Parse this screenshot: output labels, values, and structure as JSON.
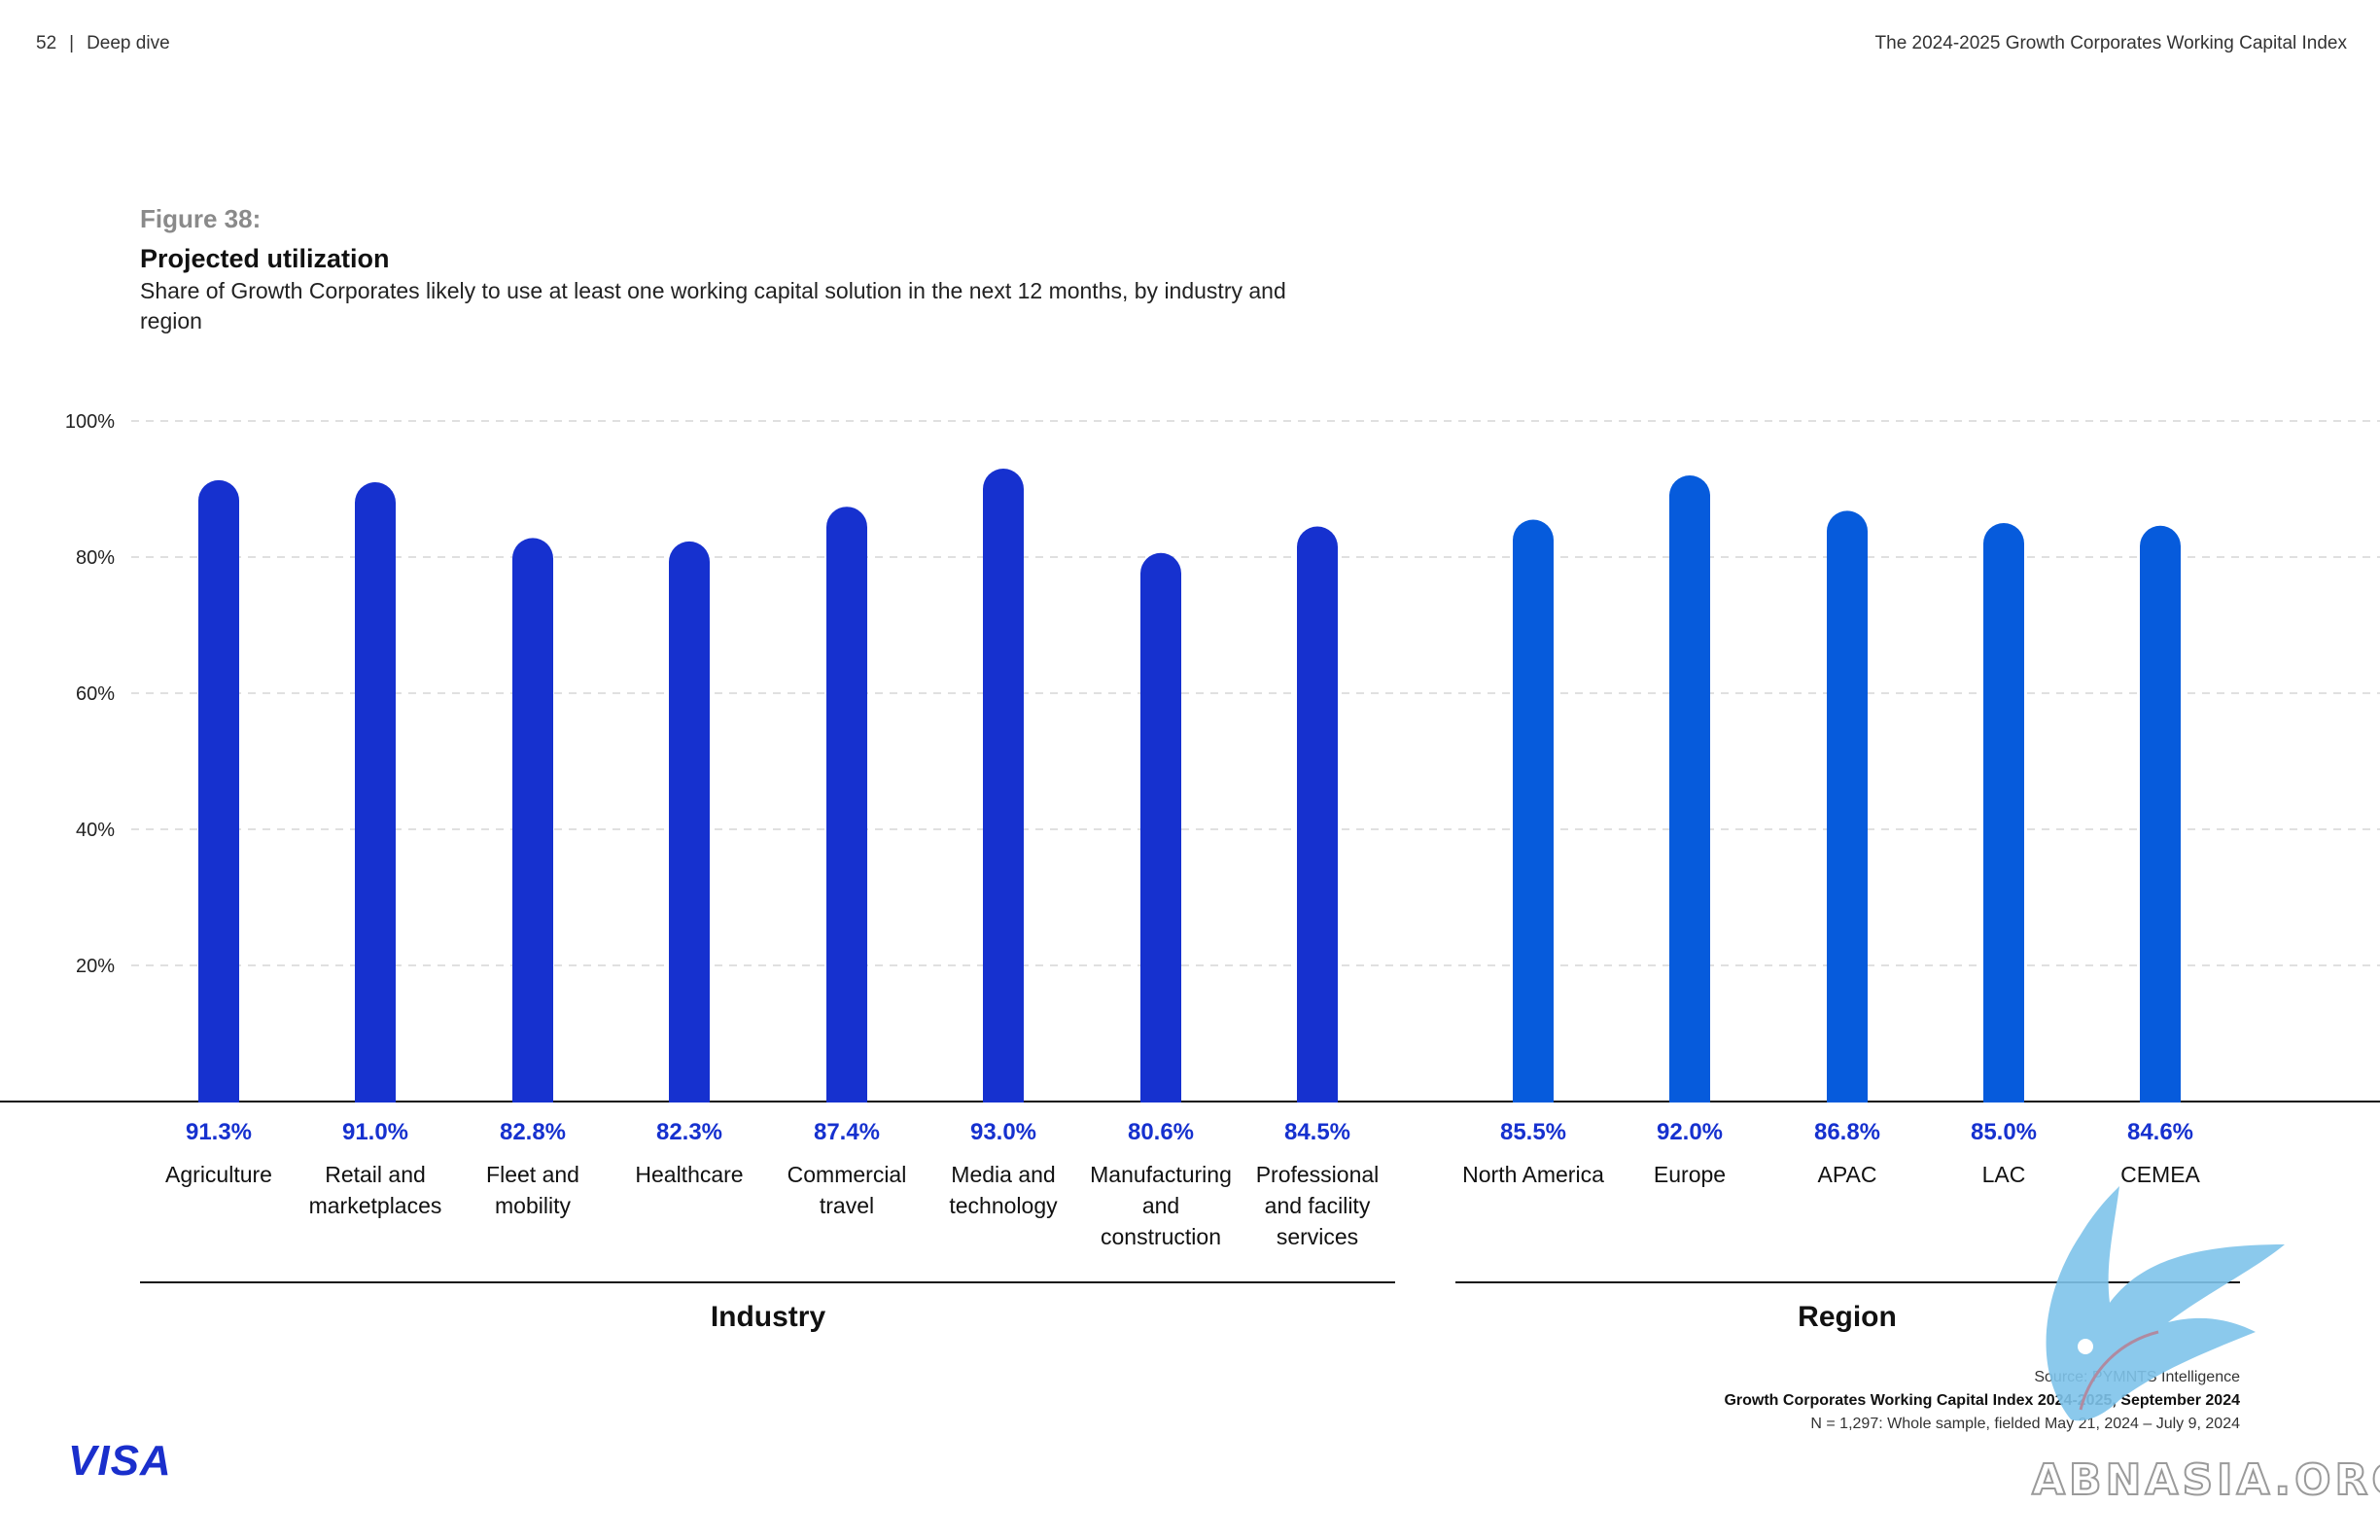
{
  "header": {
    "page_number": "52",
    "separator": "|",
    "section": "Deep dive",
    "report_title": "The 2024-2025 Growth Corporates Working Capital Index"
  },
  "figure": {
    "label": "Figure 38:",
    "title": "Projected utilization",
    "subtitle": "Share of Growth Corporates likely to use at least one working capital solution in the next 12 months, by industry and region"
  },
  "chart_data": {
    "type": "bar",
    "ylim": [
      0,
      100
    ],
    "y_ticks": [
      "20%",
      "40%",
      "60%",
      "80%",
      "100%"
    ],
    "grid": true,
    "groups": [
      {
        "name": "Industry",
        "color": "#1631cf",
        "categories": [
          "Agriculture",
          "Retail and marketplaces",
          "Fleet and mobility",
          "Healthcare",
          "Commercial travel",
          "Media and technology",
          "Manufacturing and construction",
          "Professional and facility services"
        ],
        "category_lines": [
          [
            "Agriculture"
          ],
          [
            "Retail and",
            "marketplaces"
          ],
          [
            "Fleet and",
            "mobility"
          ],
          [
            "Healthcare"
          ],
          [
            "Commercial",
            "travel"
          ],
          [
            "Media and",
            "technology"
          ],
          [
            "Manufacturing",
            "and",
            "construction"
          ],
          [
            "Professional",
            "and facility",
            "services"
          ]
        ],
        "values": [
          91.3,
          91.0,
          82.8,
          82.3,
          87.4,
          93.0,
          80.6,
          84.5
        ],
        "value_labels": [
          "91.3%",
          "91.0%",
          "82.8%",
          "82.3%",
          "87.4%",
          "93.0%",
          "80.6%",
          "84.5%"
        ]
      },
      {
        "name": "Region",
        "color": "#065bdc",
        "categories": [
          "North America",
          "Europe",
          "APAC",
          "LAC",
          "CEMEA"
        ],
        "category_lines": [
          [
            "North America"
          ],
          [
            "Europe"
          ],
          [
            "APAC"
          ],
          [
            "LAC"
          ],
          [
            "CEMEA"
          ]
        ],
        "values": [
          85.5,
          92.0,
          86.8,
          85.0,
          84.6
        ],
        "value_labels": [
          "85.5%",
          "92.0%",
          "86.8%",
          "85.0%",
          "84.6%"
        ]
      }
    ],
    "label_color": "#1631cf"
  },
  "source": {
    "line1": "Source: PYMNTS Intelligence",
    "line2": "Growth Corporates Working Capital Index 2024-2025, September 2024",
    "line3": "N = 1,297: Whole sample, fielded May 21, 2024 – July 9, 2024"
  },
  "logo": {
    "text": "VISA"
  },
  "watermark": {
    "text": "ABNASIA.ORG"
  }
}
